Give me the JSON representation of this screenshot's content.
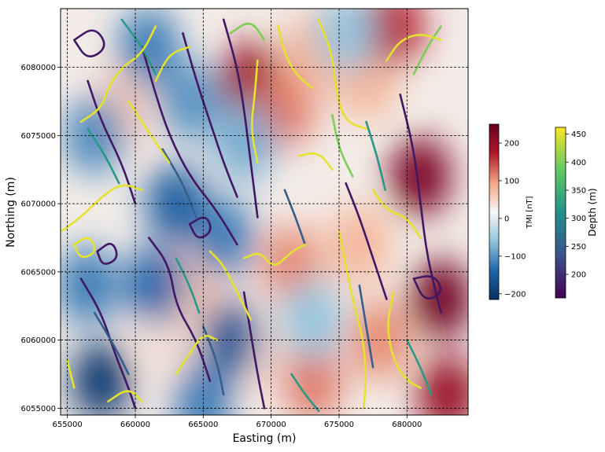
{
  "chart_data": {
    "type": "heatmap",
    "xlabel": "Easting (m)",
    "ylabel": "Northing (m)",
    "xlim": [
      654500,
      684500
    ],
    "ylim": [
      6054500,
      6084300
    ],
    "x_ticks": [
      655000,
      660000,
      665000,
      670000,
      675000,
      680000
    ],
    "x_tick_labels": [
      "655000",
      "660000",
      "665000",
      "670000",
      "675000",
      "680000"
    ],
    "y_ticks": [
      6055000,
      6060000,
      6065000,
      6070000,
      6075000,
      6080000
    ],
    "y_tick_labels": [
      "6055000",
      "6060000",
      "6065000",
      "6070000",
      "6075000",
      "6080000"
    ],
    "grid": true,
    "grid_style": "dashed",
    "tmi_colorbar": {
      "label": "TMI [nT]",
      "range": [
        -215,
        250
      ],
      "ticks": [
        200,
        100,
        0,
        -100,
        -200
      ],
      "tick_labels": [
        "200",
        "100",
        "0",
        "−100",
        "−200"
      ],
      "colormap": "RdBu_r",
      "stops": [
        "#053061",
        "#2166ac",
        "#92c5de",
        "#f7f7f7",
        "#f4a582",
        "#b2182b",
        "#67001f"
      ]
    },
    "depth_colorbar": {
      "label": "Depth (m)",
      "range": [
        158,
        462
      ],
      "ticks": [
        450,
        400,
        350,
        300,
        250,
        200
      ],
      "tick_labels": [
        "450",
        "400",
        "350",
        "300",
        "250",
        "200"
      ],
      "colormap": "viridis",
      "stops": [
        "#440154",
        "#3b528b",
        "#21918c",
        "#5ec962",
        "#fde725"
      ]
    },
    "tmi_anomalies": [
      {
        "x": 659000,
        "y": 6077000,
        "value": 60
      },
      {
        "x": 662500,
        "y": 6060000,
        "value": 40
      },
      {
        "x": 664500,
        "y": 6064000,
        "value": 60
      },
      {
        "x": 668500,
        "y": 6079000,
        "value": 200
      },
      {
        "x": 671000,
        "y": 6077000,
        "value": 120
      },
      {
        "x": 673000,
        "y": 6081000,
        "value": 80
      },
      {
        "x": 671500,
        "y": 6065500,
        "value": 110
      },
      {
        "x": 669500,
        "y": 6058500,
        "value": 40
      },
      {
        "x": 673000,
        "y": 6057000,
        "value": 120
      },
      {
        "x": 677000,
        "y": 6079000,
        "value": 80
      },
      {
        "x": 679000,
        "y": 6083000,
        "value": 170
      },
      {
        "x": 681000,
        "y": 6072000,
        "value": 230
      },
      {
        "x": 682500,
        "y": 6063000,
        "value": 240
      },
      {
        "x": 683000,
        "y": 6056000,
        "value": 200
      },
      {
        "x": 676500,
        "y": 6067000,
        "value": 80
      },
      {
        "x": 678000,
        "y": 6060000,
        "value": 110
      },
      {
        "x": 657000,
        "y": 6075000,
        "value": -110
      },
      {
        "x": 661000,
        "y": 6081500,
        "value": -120
      },
      {
        "x": 663000,
        "y": 6070000,
        "value": -150
      },
      {
        "x": 656500,
        "y": 6064000,
        "value": -120
      },
      {
        "x": 657500,
        "y": 6057000,
        "value": -200
      },
      {
        "x": 661500,
        "y": 6064000,
        "value": -140
      },
      {
        "x": 666500,
        "y": 6067500,
        "value": -120
      },
      {
        "x": 667000,
        "y": 6060000,
        "value": -160
      },
      {
        "x": 668000,
        "y": 6074500,
        "value": -80
      },
      {
        "x": 664000,
        "y": 6077500,
        "value": -100
      },
      {
        "x": 675500,
        "y": 6082500,
        "value": -60
      },
      {
        "x": 673000,
        "y": 6061500,
        "value": -60
      },
      {
        "x": 665000,
        "y": 6055500,
        "value": -120
      }
    ],
    "depth_contours": [
      {
        "depth": 180,
        "points": [
          [
            655500,
            6082000
          ],
          [
            657000,
            6083000
          ],
          [
            658000,
            6081500
          ],
          [
            656500,
            6080500
          ],
          [
            655500,
            6082000
          ]
        ]
      },
      {
        "depth": 180,
        "points": [
          [
            656500,
            6079000
          ],
          [
            657500,
            6076000
          ],
          [
            659000,
            6073000
          ],
          [
            660000,
            6070000
          ]
        ]
      },
      {
        "depth": 180,
        "points": [
          [
            660500,
            6081500
          ],
          [
            661500,
            6078000
          ],
          [
            662500,
            6075000
          ],
          [
            664000,
            6072000
          ],
          [
            666000,
            6069500
          ],
          [
            667500,
            6067000
          ]
        ]
      },
      {
        "depth": 180,
        "points": [
          [
            663500,
            6082500
          ],
          [
            664500,
            6079000
          ],
          [
            665500,
            6076000
          ],
          [
            666500,
            6073000
          ],
          [
            667500,
            6070500
          ]
        ]
      },
      {
        "depth": 180,
        "points": [
          [
            666500,
            6083500
          ],
          [
            667500,
            6080000
          ],
          [
            668000,
            6077000
          ],
          [
            668500,
            6073000
          ],
          [
            669000,
            6069000
          ]
        ]
      },
      {
        "depth": 180,
        "points": [
          [
            656000,
            6064500
          ],
          [
            657500,
            6062000
          ],
          [
            658500,
            6059000
          ],
          [
            659500,
            6056500
          ],
          [
            660000,
            6055000
          ]
        ]
      },
      {
        "depth": 180,
        "points": [
          [
            661000,
            6067500
          ],
          [
            662500,
            6065500
          ],
          [
            663000,
            6062500
          ],
          [
            664500,
            6060000
          ],
          [
            665500,
            6057000
          ]
        ]
      },
      {
        "depth": 180,
        "points": [
          [
            668000,
            6063500
          ],
          [
            668500,
            6060500
          ],
          [
            669000,
            6057500
          ],
          [
            669500,
            6055000
          ]
        ]
      },
      {
        "depth": 180,
        "points": [
          [
            675500,
            6071500
          ],
          [
            676500,
            6069000
          ],
          [
            677500,
            6066000
          ],
          [
            678500,
            6063000
          ]
        ]
      },
      {
        "depth": 180,
        "points": [
          [
            679500,
            6078000
          ],
          [
            680500,
            6074000
          ],
          [
            681000,
            6070000
          ],
          [
            681500,
            6066000
          ],
          [
            682500,
            6062000
          ]
        ]
      },
      {
        "depth": 180,
        "points": [
          [
            680500,
            6064500
          ],
          [
            682000,
            6064800
          ],
          [
            682700,
            6063500
          ],
          [
            681300,
            6062800
          ],
          [
            680500,
            6064500
          ]
        ]
      },
      {
        "depth": 180,
        "points": [
          [
            664000,
            6068500
          ],
          [
            665200,
            6069200
          ],
          [
            665700,
            6068000
          ],
          [
            664600,
            6067300
          ],
          [
            664000,
            6068500
          ]
        ]
      },
      {
        "depth": 180,
        "points": [
          [
            657200,
            6066500
          ],
          [
            658300,
            6067300
          ],
          [
            658800,
            6066000
          ],
          [
            657600,
            6065400
          ],
          [
            657200,
            6066500
          ]
        ]
      },
      {
        "depth": 250,
        "points": [
          [
            657000,
            6062000
          ],
          [
            658500,
            6059500
          ],
          [
            659500,
            6057500
          ]
        ]
      },
      {
        "depth": 250,
        "points": [
          [
            662000,
            6074000
          ],
          [
            663500,
            6071500
          ],
          [
            664500,
            6069000
          ]
        ]
      },
      {
        "depth": 250,
        "points": [
          [
            671000,
            6071000
          ],
          [
            671800,
            6069000
          ],
          [
            672500,
            6067000
          ]
        ]
      },
      {
        "depth": 250,
        "points": [
          [
            676500,
            6064000
          ],
          [
            677000,
            6061000
          ],
          [
            677500,
            6058000
          ]
        ]
      },
      {
        "depth": 250,
        "points": [
          [
            665000,
            6061000
          ],
          [
            666000,
            6058500
          ],
          [
            666500,
            6056000
          ]
        ]
      },
      {
        "depth": 320,
        "points": [
          [
            659000,
            6083500
          ],
          [
            660500,
            6081500
          ],
          [
            661500,
            6079500
          ]
        ]
      },
      {
        "depth": 320,
        "points": [
          [
            656500,
            6075500
          ],
          [
            657800,
            6073500
          ],
          [
            658800,
            6071500
          ]
        ]
      },
      {
        "depth": 320,
        "points": [
          [
            663000,
            6066000
          ],
          [
            664000,
            6064000
          ],
          [
            664700,
            6062000
          ]
        ]
      },
      {
        "depth": 320,
        "points": [
          [
            677000,
            6076000
          ],
          [
            677800,
            6073500
          ],
          [
            678400,
            6071000
          ]
        ]
      },
      {
        "depth": 320,
        "points": [
          [
            680000,
            6060000
          ],
          [
            681000,
            6058000
          ],
          [
            681800,
            6056000
          ]
        ]
      },
      {
        "depth": 320,
        "points": [
          [
            671500,
            6057500
          ],
          [
            672500,
            6056000
          ],
          [
            673500,
            6054800
          ]
        ]
      },
      {
        "depth": 400,
        "points": [
          [
            667000,
            6082500
          ],
          [
            668500,
            6083500
          ],
          [
            669500,
            6082000
          ]
        ]
      },
      {
        "depth": 400,
        "points": [
          [
            674500,
            6076500
          ],
          [
            675000,
            6074000
          ],
          [
            676000,
            6072000
          ]
        ]
      },
      {
        "depth": 400,
        "points": [
          [
            680500,
            6079500
          ],
          [
            681500,
            6081500
          ],
          [
            682500,
            6083000
          ]
        ]
      },
      {
        "depth": 450,
        "points": [
          [
            654600,
            6068000
          ],
          [
            656000,
            6069000
          ],
          [
            657500,
            6070500
          ],
          [
            659000,
            6071500
          ],
          [
            660500,
            6071000
          ]
        ]
      },
      {
        "depth": 450,
        "points": [
          [
            655500,
            6067000
          ],
          [
            656600,
            6067700
          ],
          [
            657200,
            6066500
          ],
          [
            656000,
            6065900
          ],
          [
            655500,
            6067000
          ]
        ]
      },
      {
        "depth": 450,
        "points": [
          [
            656000,
            6076000
          ],
          [
            657500,
            6077000
          ],
          [
            658000,
            6078500
          ],
          [
            659000,
            6080000
          ],
          [
            660500,
            6081000
          ],
          [
            661500,
            6083000
          ]
        ]
      },
      {
        "depth": 450,
        "points": [
          [
            659500,
            6077500
          ],
          [
            660500,
            6076000
          ],
          [
            661500,
            6074500
          ],
          [
            662500,
            6073000
          ]
        ]
      },
      {
        "depth": 450,
        "points": [
          [
            661500,
            6079000
          ],
          [
            662500,
            6081000
          ],
          [
            664000,
            6081500
          ]
        ]
      },
      {
        "depth": 450,
        "points": [
          [
            669000,
            6080500
          ],
          [
            668800,
            6078000
          ],
          [
            668500,
            6075500
          ],
          [
            669000,
            6073000
          ]
        ]
      },
      {
        "depth": 450,
        "points": [
          [
            670500,
            6083000
          ],
          [
            671000,
            6081000
          ],
          [
            671800,
            6079500
          ],
          [
            673000,
            6078500
          ]
        ]
      },
      {
        "depth": 450,
        "points": [
          [
            673500,
            6083500
          ],
          [
            674500,
            6081000
          ],
          [
            674800,
            6078000
          ],
          [
            675500,
            6076000
          ],
          [
            677000,
            6075500
          ]
        ]
      },
      {
        "depth": 450,
        "points": [
          [
            668000,
            6066000
          ],
          [
            669200,
            6066500
          ],
          [
            670200,
            6065200
          ],
          [
            671500,
            6066500
          ],
          [
            672500,
            6067000
          ]
        ]
      },
      {
        "depth": 450,
        "points": [
          [
            665500,
            6066500
          ],
          [
            666500,
            6065500
          ],
          [
            667500,
            6063500
          ],
          [
            668500,
            6061500
          ]
        ]
      },
      {
        "depth": 450,
        "points": [
          [
            663000,
            6057500
          ],
          [
            664000,
            6059000
          ],
          [
            665000,
            6060500
          ],
          [
            666000,
            6060000
          ]
        ]
      },
      {
        "depth": 450,
        "points": [
          [
            675000,
            6068000
          ],
          [
            675500,
            6065500
          ],
          [
            676000,
            6063000
          ],
          [
            676800,
            6060000
          ],
          [
            677000,
            6057000
          ],
          [
            676800,
            6055000
          ]
        ]
      },
      {
        "depth": 450,
        "points": [
          [
            677500,
            6071000
          ],
          [
            678500,
            6069500
          ],
          [
            680000,
            6069000
          ],
          [
            681000,
            6067500
          ]
        ]
      },
      {
        "depth": 450,
        "points": [
          [
            678500,
            6080500
          ],
          [
            679500,
            6082000
          ],
          [
            681000,
            6082500
          ],
          [
            682500,
            6082000
          ]
        ]
      },
      {
        "depth": 450,
        "points": [
          [
            655000,
            6058500
          ],
          [
            655500,
            6056500
          ]
        ]
      },
      {
        "depth": 450,
        "points": [
          [
            679000,
            6063500
          ],
          [
            678500,
            6061000
          ],
          [
            679000,
            6058500
          ],
          [
            680000,
            6057000
          ],
          [
            681000,
            6056500
          ]
        ]
      },
      {
        "depth": 450,
        "points": [
          [
            672000,
            6073500
          ],
          [
            673500,
            6073800
          ],
          [
            674500,
            6072500
          ]
        ]
      },
      {
        "depth": 450,
        "points": [
          [
            658000,
            6055500
          ],
          [
            659500,
            6056500
          ],
          [
            660500,
            6055500
          ]
        ]
      }
    ]
  }
}
